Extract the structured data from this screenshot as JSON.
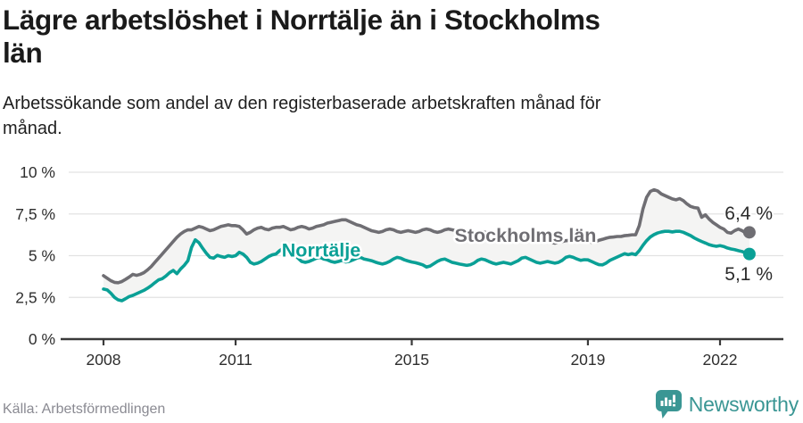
{
  "header": {
    "title": "Lägre arbetslöshet i Norrtälje än i Stockholms län",
    "title_lines": [
      "Lägre arbetslöshet i Norrtälje än i Stockholms",
      "län"
    ],
    "subtitle": "Arbetssökande som andel av den registerbaserade arbetskraften månad för månad.",
    "subtitle_lines": [
      "Arbetssökande som andel av den registerbaserade arbetskraften månad för",
      "månad."
    ]
  },
  "footer": {
    "source": "Källa: Arbetsförmedlingen",
    "logo_text": "Newsworthy"
  },
  "colors": {
    "title_text": "#1a1a1a",
    "axis_text": "#2e2e2e",
    "gridline": "#e2e2e2",
    "axis_line": "#3a3a3a",
    "band_fill": "#f4f4f3",
    "stockholm_gray": "#6f6e73",
    "norrtalje_teal": "#0aa096",
    "end_label_text": "#2b2b2b",
    "source_text": "#8a8a92",
    "logo_teal": "#3a9694"
  },
  "chart_data": {
    "type": "line",
    "title": "Lägre arbetslöshet i Norrtälje än i Stockholms län",
    "xlabel": "",
    "ylabel": "",
    "x_range": {
      "start": "2008-01",
      "end": "2022-09",
      "interval": "month"
    },
    "ylim": [
      0,
      10
    ],
    "grid": true,
    "band_between_series": true,
    "band_color": "#f4f4f3",
    "y_ticks": [
      {
        "value": 0,
        "label": "0 %"
      },
      {
        "value": 2.5,
        "label": "2,5 %"
      },
      {
        "value": 5,
        "label": "5 %"
      },
      {
        "value": 7.5,
        "label": "7,5 %"
      },
      {
        "value": 10,
        "label": "10 %"
      }
    ],
    "x_ticks": [
      {
        "year": 2008,
        "label": "2008"
      },
      {
        "year": 2011,
        "label": "2011"
      },
      {
        "year": 2015,
        "label": "2015"
      },
      {
        "year": 2019,
        "label": "2019"
      },
      {
        "year": 2022,
        "label": "2022"
      }
    ],
    "series": [
      {
        "name": "Stockholms län",
        "color": "#6f6e73",
        "end_label": "6,4 %",
        "end_value": 6.4,
        "values": [
          3.8,
          3.65,
          3.5,
          3.4,
          3.38,
          3.45,
          3.58,
          3.72,
          3.88,
          3.82,
          3.88,
          3.98,
          4.15,
          4.35,
          4.6,
          4.85,
          5.1,
          5.35,
          5.6,
          5.85,
          6.1,
          6.3,
          6.45,
          6.55,
          6.55,
          6.65,
          6.75,
          6.7,
          6.6,
          6.5,
          6.55,
          6.65,
          6.75,
          6.8,
          6.85,
          6.8,
          6.8,
          6.75,
          6.55,
          6.3,
          6.4,
          6.55,
          6.65,
          6.7,
          6.6,
          6.55,
          6.65,
          6.7,
          6.7,
          6.75,
          6.65,
          6.55,
          6.6,
          6.7,
          6.75,
          6.7,
          6.6,
          6.65,
          6.75,
          6.8,
          6.85,
          6.95,
          7.0,
          7.05,
          7.1,
          7.15,
          7.15,
          7.05,
          6.95,
          6.85,
          6.8,
          6.7,
          6.6,
          6.5,
          6.45,
          6.4,
          6.45,
          6.55,
          6.6,
          6.55,
          6.45,
          6.4,
          6.45,
          6.5,
          6.45,
          6.4,
          6.45,
          6.55,
          6.6,
          6.55,
          6.45,
          6.4,
          6.45,
          6.55,
          6.6,
          6.55,
          6.5,
          6.55,
          6.5,
          6.45,
          6.4,
          6.35,
          6.4,
          6.45,
          6.4,
          6.3,
          6.25,
          6.2,
          6.15,
          6.1,
          6.15,
          6.1,
          6.05,
          6.0,
          6.05,
          6.1,
          6.05,
          6.0,
          5.95,
          5.9,
          5.9,
          5.85,
          5.8,
          5.75,
          5.8,
          5.85,
          5.9,
          5.92,
          5.88,
          5.82,
          5.85,
          5.9,
          5.85,
          5.8,
          5.85,
          5.92,
          5.98,
          6.05,
          6.1,
          6.12,
          6.15,
          6.15,
          6.2,
          6.22,
          6.25,
          6.25,
          6.8,
          7.8,
          8.5,
          8.85,
          8.95,
          8.88,
          8.7,
          8.6,
          8.5,
          8.4,
          8.35,
          8.42,
          8.3,
          8.1,
          7.95,
          7.88,
          7.85,
          7.3,
          7.45,
          7.2,
          7.0,
          6.85,
          6.7,
          6.6,
          6.4,
          6.35,
          6.5,
          6.6,
          6.5,
          6.35,
          6.4
        ]
      },
      {
        "name": "Norrtälje",
        "color": "#0aa096",
        "end_label": "5,1 %",
        "end_value": 5.1,
        "values": [
          3.0,
          2.95,
          2.75,
          2.5,
          2.35,
          2.3,
          2.42,
          2.55,
          2.62,
          2.72,
          2.82,
          2.92,
          3.05,
          3.2,
          3.38,
          3.55,
          3.62,
          3.78,
          3.98,
          4.12,
          3.92,
          4.2,
          4.42,
          4.7,
          5.5,
          5.95,
          5.78,
          5.45,
          5.15,
          4.9,
          4.85,
          5.02,
          4.95,
          4.9,
          5.0,
          4.95,
          5.0,
          5.2,
          5.1,
          4.9,
          4.6,
          4.5,
          4.55,
          4.65,
          4.8,
          4.95,
          5.05,
          5.1,
          5.3,
          5.45,
          5.35,
          5.2,
          5.05,
          4.85,
          4.65,
          4.6,
          4.65,
          4.75,
          4.85,
          4.9,
          4.8,
          4.75,
          4.65,
          4.6,
          4.65,
          4.72,
          4.62,
          4.66,
          4.75,
          4.85,
          4.9,
          4.8,
          4.75,
          4.7,
          4.62,
          4.55,
          4.5,
          4.56,
          4.66,
          4.8,
          4.9,
          4.85,
          4.75,
          4.68,
          4.62,
          4.58,
          4.52,
          4.45,
          4.32,
          4.38,
          4.52,
          4.66,
          4.76,
          4.8,
          4.7,
          4.6,
          4.55,
          4.5,
          4.46,
          4.42,
          4.46,
          4.56,
          4.72,
          4.8,
          4.75,
          4.65,
          4.56,
          4.5,
          4.55,
          4.6,
          4.55,
          4.5,
          4.6,
          4.7,
          4.86,
          4.9,
          4.8,
          4.7,
          4.6,
          4.55,
          4.6,
          4.65,
          4.6,
          4.55,
          4.6,
          4.72,
          4.9,
          4.96,
          4.9,
          4.8,
          4.72,
          4.76,
          4.75,
          4.65,
          4.55,
          4.46,
          4.45,
          4.56,
          4.72,
          4.82,
          4.92,
          5.02,
          5.12,
          5.06,
          5.12,
          5.06,
          5.3,
          5.62,
          5.9,
          6.12,
          6.26,
          6.36,
          6.42,
          6.46,
          6.46,
          6.42,
          6.46,
          6.46,
          6.4,
          6.3,
          6.2,
          6.06,
          5.95,
          5.85,
          5.76,
          5.66,
          5.6,
          5.56,
          5.6,
          5.55,
          5.46,
          5.4,
          5.36,
          5.3,
          5.25,
          5.16,
          5.1
        ]
      }
    ],
    "legend_position": "inline-labels"
  }
}
